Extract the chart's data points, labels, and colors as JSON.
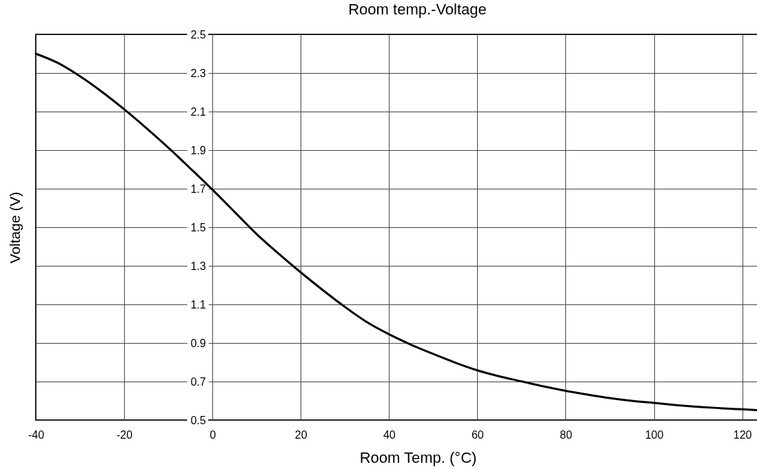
{
  "chart_data": {
    "type": "line",
    "title": "Room temp.-Voltage",
    "xlabel": "Room Temp. (°C)",
    "ylabel": "Voltage (V)",
    "x": [
      -40,
      -35,
      -30,
      -25,
      -20,
      -15,
      -10,
      -5,
      0,
      5,
      10,
      15,
      20,
      25,
      30,
      35,
      40,
      45,
      50,
      55,
      60,
      65,
      70,
      75,
      80,
      85,
      90,
      95,
      100,
      105,
      110,
      115,
      120,
      123.5
    ],
    "series": [
      {
        "color": "#000000",
        "values": [
          2.4,
          2.352,
          2.283,
          2.202,
          2.112,
          2.015,
          1.913,
          1.805,
          1.695,
          1.58,
          1.465,
          1.363,
          1.266,
          1.174,
          1.087,
          1.008,
          0.945,
          0.891,
          0.843,
          0.798,
          0.758,
          0.727,
          0.701,
          0.675,
          0.652,
          0.632,
          0.614,
          0.6,
          0.589,
          0.578,
          0.569,
          0.562,
          0.556,
          0.552
        ]
      }
    ],
    "xlim": [
      -40,
      123.5
    ],
    "ylim": [
      0.5,
      2.5
    ],
    "xticks": [
      -40,
      -20,
      0,
      20,
      40,
      60,
      80,
      100,
      120
    ],
    "yticks": [
      0.5,
      0.7,
      0.9,
      1.1,
      1.3,
      1.5,
      1.7,
      1.9,
      2.1,
      2.3,
      2.5
    ],
    "grid": true,
    "line_style": "solid"
  }
}
